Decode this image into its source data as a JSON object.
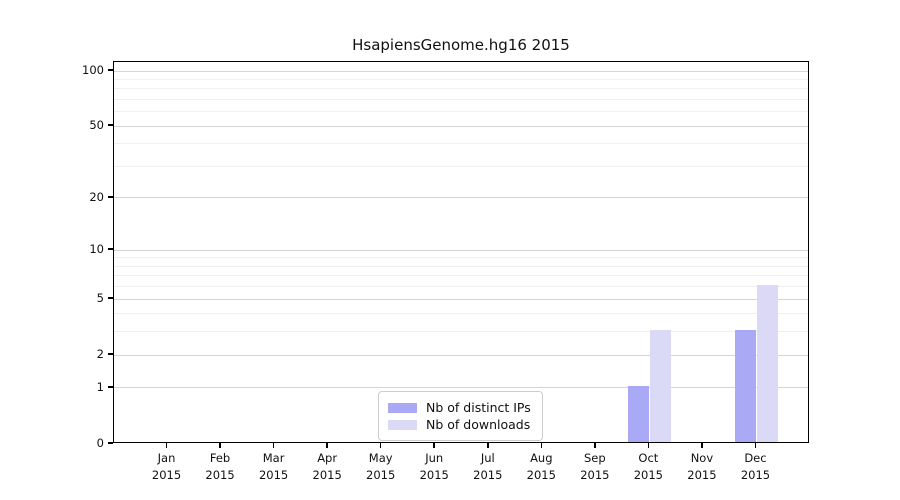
{
  "chart_data": {
    "type": "bar",
    "title": "HsapiensGenome.hg16 2015",
    "categories": [
      "Jan",
      "Feb",
      "Mar",
      "Apr",
      "May",
      "Jun",
      "Jul",
      "Aug",
      "Sep",
      "Oct",
      "Nov",
      "Dec"
    ],
    "category_year": "2015",
    "series": [
      {
        "name": "Nb of distinct IPs",
        "color": "#a9a9f6",
        "values": [
          0,
          0,
          0,
          0,
          0,
          0,
          0,
          0,
          0,
          1,
          0,
          3
        ]
      },
      {
        "name": "Nb of downloads",
        "color": "#dadaf6",
        "values": [
          0,
          0,
          0,
          0,
          0,
          0,
          0,
          0,
          0,
          3,
          0,
          6
        ]
      }
    ],
    "xlabel": "",
    "ylabel": "",
    "yscale": "log1p",
    "ylim": [
      0,
      100
    ],
    "yticks": [
      0,
      1,
      2,
      5,
      10,
      20,
      50,
      100
    ],
    "minor_gridlines": [
      3,
      4,
      6,
      7,
      8,
      9,
      30,
      40,
      60,
      70,
      80,
      90
    ],
    "grid": "on",
    "major_gridline_color": "#d4d4d4",
    "minor_gridline_color": "#efefef",
    "legend_position": "lower center",
    "legend_entries": [
      "Nb of distinct IPs",
      "Nb of downloads"
    ]
  }
}
